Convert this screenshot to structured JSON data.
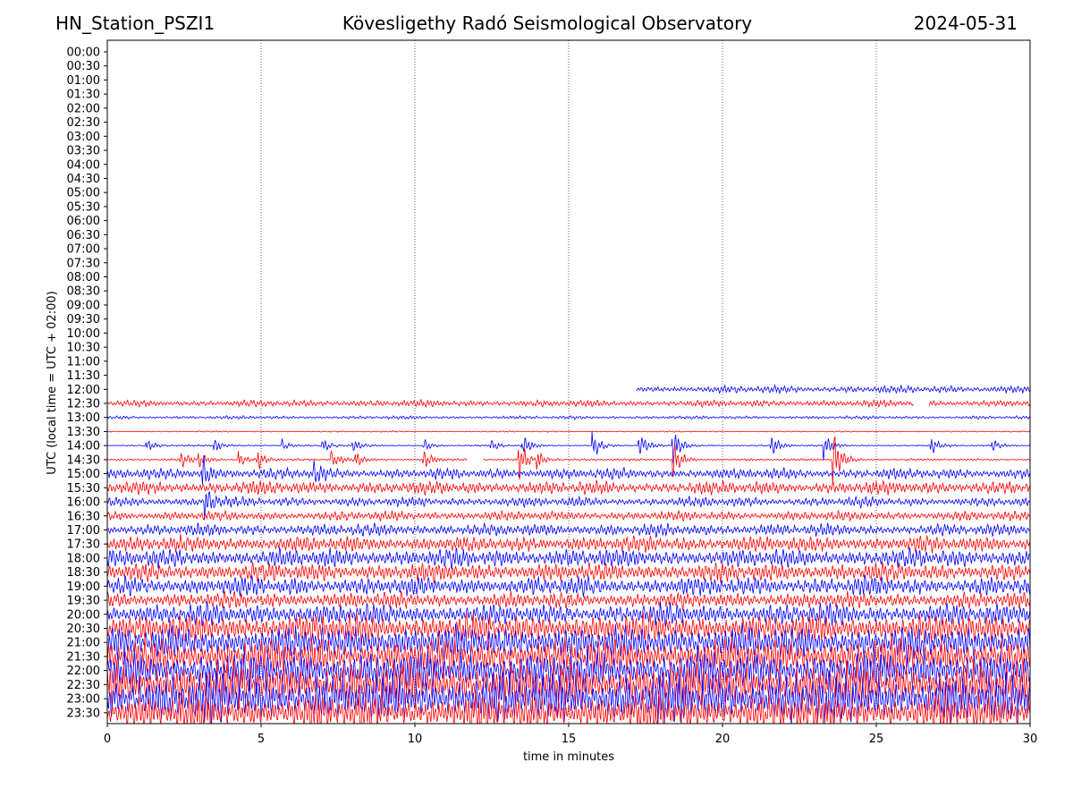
{
  "header": {
    "station": "HN_Station_PSZI1",
    "observatory": "Kövesligethy Radó Seismological Observatory",
    "date": "2024-05-31"
  },
  "chart_data": {
    "type": "line",
    "title": "Kövesligethy Radó Seismological Observatory",
    "xlabel": "time in minutes",
    "ylabel": "UTC (local time = UTC + 02:00)",
    "xlim": [
      0,
      30
    ],
    "x_ticks": [
      "0",
      "5",
      "10",
      "15",
      "20",
      "25",
      "30"
    ],
    "y_ticks": [
      "00:00",
      "00:30",
      "01:00",
      "01:30",
      "02:00",
      "02:30",
      "03:00",
      "03:30",
      "04:00",
      "04:30",
      "05:00",
      "05:30",
      "06:00",
      "06:30",
      "07:00",
      "07:30",
      "08:00",
      "08:30",
      "09:00",
      "09:30",
      "10:00",
      "10:30",
      "11:00",
      "11:30",
      "12:00",
      "12:30",
      "13:00",
      "13:30",
      "14:00",
      "14:30",
      "15:00",
      "15:30",
      "16:00",
      "16:30",
      "17:00",
      "17:30",
      "18:00",
      "18:30",
      "19:00",
      "19:30",
      "20:00",
      "20:30",
      "21:00",
      "21:30",
      "22:00",
      "22:30",
      "23:00",
      "23:30"
    ],
    "vertical_gridlines_at": [
      5,
      10,
      15,
      20,
      25
    ],
    "trace_colors": [
      "#0000ff",
      "#ff0000"
    ],
    "traces": [
      {
        "row": "12:00",
        "start_min": 17.2,
        "end_min": 30,
        "amplitude": 0.28
      },
      {
        "row": "12:30",
        "start_min": 0,
        "end_min": 30,
        "amplitude": 0.25,
        "gaps": [
          [
            26.2,
            26.7
          ]
        ]
      },
      {
        "row": "13:00",
        "start_min": 0,
        "end_min": 30,
        "amplitude": 0.12
      },
      {
        "row": "13:30",
        "start_min": 0,
        "end_min": 30,
        "amplitude": 0.05
      },
      {
        "row": "14:00",
        "start_min": 0,
        "end_min": 30,
        "amplitude": 0.06,
        "events": [
          [
            1.3,
            0.4
          ],
          [
            3.5,
            0.45
          ],
          [
            5.7,
            0.35
          ],
          [
            7.0,
            0.5
          ],
          [
            8.0,
            0.4
          ],
          [
            10.3,
            0.4
          ],
          [
            12.5,
            0.4
          ],
          [
            13.5,
            0.8
          ],
          [
            15.8,
            0.9
          ],
          [
            17.3,
            0.9
          ],
          [
            18.4,
            1.2
          ],
          [
            21.6,
            0.8
          ],
          [
            23.3,
            0.9
          ],
          [
            26.8,
            0.6
          ],
          [
            28.8,
            0.4
          ]
        ]
      },
      {
        "row": "14:30",
        "start_min": 0,
        "end_min": 30,
        "amplitude": 0.08,
        "gaps": [
          [
            11.7,
            12.2
          ]
        ],
        "events": [
          [
            2.4,
            0.6
          ],
          [
            3.0,
            0.5
          ],
          [
            4.3,
            0.5
          ],
          [
            4.9,
            0.6
          ],
          [
            7.3,
            0.6
          ],
          [
            8.1,
            0.5
          ],
          [
            10.3,
            0.8
          ],
          [
            13.4,
            1.4
          ],
          [
            14.0,
            0.6
          ],
          [
            18.4,
            1.4
          ],
          [
            23.6,
            2.5
          ]
        ]
      },
      {
        "row": "15:00",
        "start_min": 0,
        "end_min": 30,
        "amplitude": 0.4,
        "events": [
          [
            3.1,
            1.2
          ],
          [
            6.7,
            0.6
          ]
        ]
      },
      {
        "row": "15:30",
        "start_min": 0,
        "end_min": 30,
        "amplitude": 0.5
      },
      {
        "row": "16:00",
        "start_min": 0,
        "end_min": 30,
        "amplitude": 0.35,
        "events": [
          [
            3.2,
            1.0
          ]
        ]
      },
      {
        "row": "16:30",
        "start_min": 0,
        "end_min": 30,
        "amplitude": 0.35
      },
      {
        "row": "17:00",
        "start_min": 0,
        "end_min": 30,
        "amplitude": 0.45
      },
      {
        "row": "17:30",
        "start_min": 0,
        "end_min": 30,
        "amplitude": 0.6
      },
      {
        "row": "18:00",
        "start_min": 0,
        "end_min": 30,
        "amplitude": 0.7
      },
      {
        "row": "18:30",
        "start_min": 0,
        "end_min": 30,
        "amplitude": 0.7
      },
      {
        "row": "19:00",
        "start_min": 0,
        "end_min": 30,
        "amplitude": 0.7
      },
      {
        "row": "19:30",
        "start_min": 0,
        "end_min": 30,
        "amplitude": 0.6
      },
      {
        "row": "20:00",
        "start_min": 0,
        "end_min": 30,
        "amplitude": 0.8
      },
      {
        "row": "20:30",
        "start_min": 0,
        "end_min": 30,
        "amplitude": 1.1
      },
      {
        "row": "21:00",
        "start_min": 0,
        "end_min": 30,
        "amplitude": 1.3
      },
      {
        "row": "21:30",
        "start_min": 0,
        "end_min": 30,
        "amplitude": 1.4
      },
      {
        "row": "22:00",
        "start_min": 0,
        "end_min": 30,
        "amplitude": 1.5
      },
      {
        "row": "22:30",
        "start_min": 0,
        "end_min": 30,
        "amplitude": 1.7
      },
      {
        "row": "23:00",
        "start_min": 0,
        "end_min": 30,
        "amplitude": 1.9
      },
      {
        "row": "23:30",
        "start_min": 0,
        "end_min": 30,
        "amplitude": 1.4
      }
    ]
  }
}
